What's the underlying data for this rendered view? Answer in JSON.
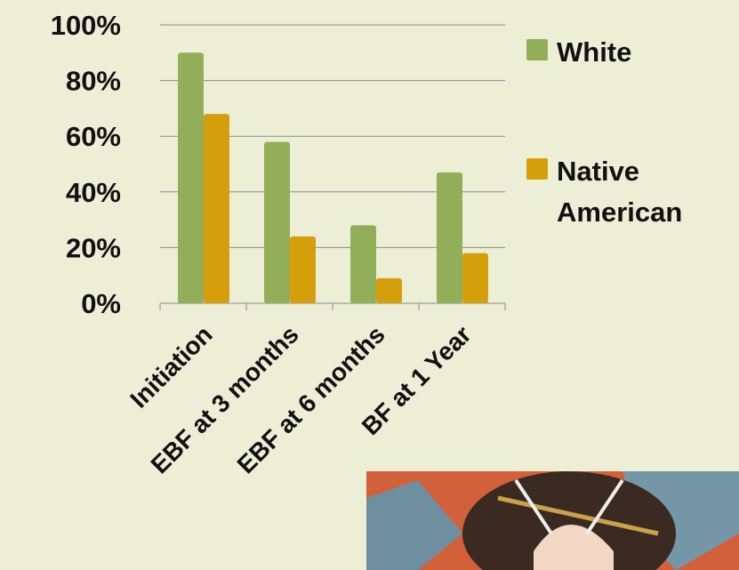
{
  "chart_data": {
    "type": "bar",
    "categories": [
      "Initiation",
      "EBF at 3 months",
      "EBF at 6 months",
      "BF at 1 Year"
    ],
    "series": [
      {
        "name": "White",
        "color": "#93ae58",
        "values": [
          90,
          58,
          28,
          47
        ]
      },
      {
        "name": "Native American",
        "color": "#d59f0c",
        "values": [
          68,
          24,
          9,
          18
        ]
      }
    ],
    "ylim": [
      0,
      100
    ],
    "yticks": [
      {
        "value": 0,
        "label": "0%"
      },
      {
        "value": 20,
        "label": "20%"
      },
      {
        "value": 40,
        "label": "40%"
      },
      {
        "value": 60,
        "label": "60%"
      },
      {
        "value": 80,
        "label": "80%"
      },
      {
        "value": 100,
        "label": "100%"
      }
    ],
    "grid": true,
    "legend": "right"
  }
}
